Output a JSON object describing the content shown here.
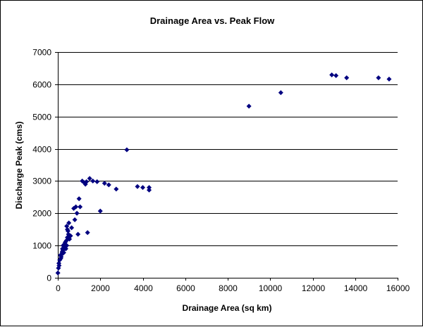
{
  "chart_data": {
    "type": "scatter",
    "title": "Drainage Area vs. Peak Flow",
    "xlabel": "Drainage Area (sq km)",
    "ylabel": "Discharge Peak (cms)",
    "xlim": [
      0,
      16000
    ],
    "ylim": [
      0,
      7000
    ],
    "xticks": [
      0,
      2000,
      4000,
      6000,
      8000,
      10000,
      12000,
      14000,
      16000
    ],
    "yticks": [
      0,
      1000,
      2000,
      3000,
      4000,
      5000,
      6000,
      7000
    ],
    "grid": "horizontal",
    "legend": "none",
    "marker_color": "#000080",
    "points": [
      [
        5,
        150
      ],
      [
        30,
        300
      ],
      [
        50,
        450
      ],
      [
        60,
        380
      ],
      [
        90,
        550
      ],
      [
        120,
        700
      ],
      [
        140,
        600
      ],
      [
        160,
        650
      ],
      [
        180,
        720
      ],
      [
        200,
        800
      ],
      [
        220,
        900
      ],
      [
        240,
        850
      ],
      [
        250,
        1000
      ],
      [
        280,
        780
      ],
      [
        300,
        950
      ],
      [
        320,
        1050
      ],
      [
        350,
        1100
      ],
      [
        380,
        900
      ],
      [
        400,
        1150
      ],
      [
        420,
        1000
      ],
      [
        450,
        1250
      ],
      [
        480,
        1450
      ],
      [
        500,
        1350
      ],
      [
        420,
        1600
      ],
      [
        450,
        1500
      ],
      [
        520,
        1700
      ],
      [
        550,
        1200
      ],
      [
        600,
        1300
      ],
      [
        650,
        1550
      ],
      [
        750,
        2150
      ],
      [
        800,
        1800
      ],
      [
        850,
        2200
      ],
      [
        900,
        2000
      ],
      [
        950,
        1350
      ],
      [
        1000,
        2450
      ],
      [
        1050,
        2200
      ],
      [
        1150,
        3000
      ],
      [
        1250,
        2950
      ],
      [
        1300,
        2900
      ],
      [
        1350,
        2980
      ],
      [
        1400,
        1400
      ],
      [
        1500,
        3080
      ],
      [
        1650,
        3000
      ],
      [
        1850,
        2980
      ],
      [
        2000,
        2070
      ],
      [
        2200,
        2930
      ],
      [
        2400,
        2880
      ],
      [
        2750,
        2750
      ],
      [
        3250,
        3970
      ],
      [
        3750,
        2830
      ],
      [
        4000,
        2800
      ],
      [
        4300,
        2800
      ],
      [
        4300,
        2720
      ],
      [
        9000,
        5320
      ],
      [
        10500,
        5740
      ],
      [
        12900,
        6290
      ],
      [
        13100,
        6270
      ],
      [
        13600,
        6200
      ],
      [
        15100,
        6200
      ],
      [
        15600,
        6160
      ]
    ]
  }
}
